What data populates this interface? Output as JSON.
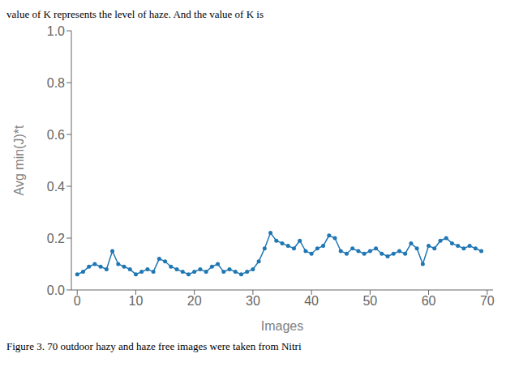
{
  "chart_data": {
    "type": "line",
    "annotations": [
      "value of K represents the level of haze.  And the value of K is",
      "Figure 3.  70 outdoor hazy and haze free images were taken from Nitri"
    ],
    "x": [
      0,
      1,
      2,
      3,
      4,
      5,
      6,
      7,
      8,
      9,
      10,
      11,
      12,
      13,
      14,
      15,
      16,
      17,
      18,
      19,
      20,
      21,
      22,
      23,
      24,
      25,
      26,
      27,
      28,
      29,
      30,
      31,
      32,
      33,
      34,
      35,
      36,
      37,
      38,
      39,
      40,
      41,
      42,
      43,
      44,
      45,
      46,
      47,
      48,
      49,
      50,
      51,
      52,
      53,
      54,
      55,
      56,
      57,
      58,
      59,
      60,
      61,
      62,
      63,
      64,
      65,
      66,
      67,
      68,
      69
    ],
    "values": [
      0.06,
      0.07,
      0.09,
      0.1,
      0.09,
      0.08,
      0.15,
      0.1,
      0.09,
      0.08,
      0.06,
      0.07,
      0.08,
      0.07,
      0.12,
      0.11,
      0.09,
      0.08,
      0.07,
      0.06,
      0.07,
      0.08,
      0.07,
      0.09,
      0.1,
      0.07,
      0.08,
      0.07,
      0.06,
      0.07,
      0.08,
      0.11,
      0.16,
      0.22,
      0.19,
      0.18,
      0.17,
      0.16,
      0.19,
      0.15,
      0.14,
      0.16,
      0.17,
      0.21,
      0.2,
      0.15,
      0.14,
      0.16,
      0.15,
      0.14,
      0.15,
      0.16,
      0.14,
      0.13,
      0.14,
      0.15,
      0.14,
      0.18,
      0.16,
      0.1,
      0.17,
      0.16,
      0.19,
      0.2,
      0.18,
      0.17,
      0.16,
      0.17,
      0.16,
      0.15
    ],
    "color": "#1f77b4",
    "marker": "circle",
    "xlabel": "Images",
    "ylabel": "Avg min(J)*t",
    "xlim": [
      -1,
      71
    ],
    "ylim": [
      0.0,
      1.0
    ],
    "xticks": [
      0,
      10,
      20,
      30,
      40,
      50,
      60,
      70
    ],
    "yticks": [
      {
        "value": 0.0,
        "label": "0.0"
      },
      0.2,
      0.4,
      0.6,
      0.8,
      {
        "value": 1.0,
        "label": "1.0"
      }
    ],
    "grid": false
  }
}
